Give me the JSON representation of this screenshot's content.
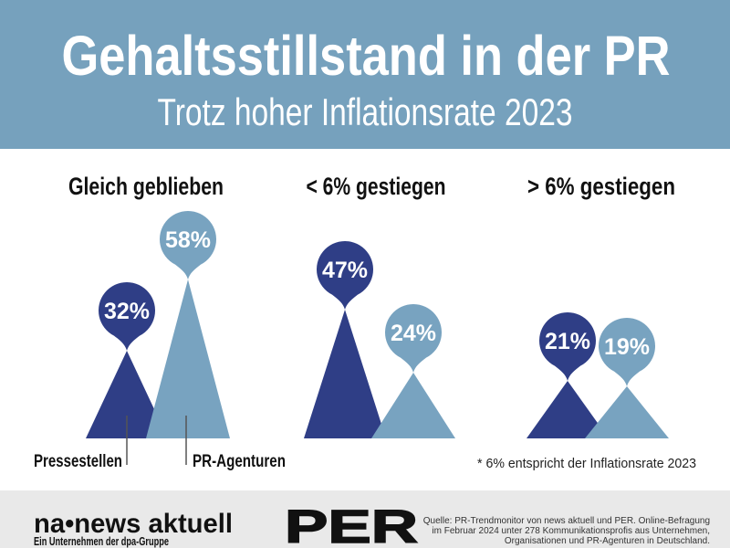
{
  "header": {
    "title": "Gehaltsstillstand in der PR",
    "subtitle": "Trotz hoher Inflationsrate 2023"
  },
  "chart_data": {
    "type": "bar",
    "variant": "pictorial-mountains-with-balloon-labels",
    "categories": [
      "Gleich geblieben",
      "< 6% gestiegen",
      "> 6% gestiegen"
    ],
    "series": [
      {
        "name": "Pressestellen",
        "color": "#2F3E86",
        "values": [
          32,
          47,
          21
        ]
      },
      {
        "name": "PR-Agenturen",
        "color": "#78A3C0",
        "values": [
          58,
          24,
          19
        ]
      }
    ],
    "unit": "%",
    "ylim": [
      0,
      60
    ],
    "legend_position": "bottom-left",
    "grid": false,
    "note": "* 6% entspricht der Inflationsrate 2023"
  },
  "footer": {
    "logo_main": "na•news aktuell",
    "logo_sub": "Ein Unternehmen der dpa-Gruppe",
    "partner_logo": "PER",
    "source_lines": [
      "Quelle: PR-Trendmonitor von news aktuell und PER. Online-Befragung",
      "im Februar 2024 unter 278 Kommunikationsprofis aus Unternehmen,",
      "Organisationen und PR-Agenturen in Deutschland."
    ]
  },
  "colors": {
    "header_bg": "#76A1BD",
    "main_bg": "#FFFFFF",
    "footer_bg": "#E9E9E9",
    "dark_blue": "#2F3E86",
    "light_blue": "#78A3C0",
    "title_text": "#FFFFFF",
    "body_text": "#111111",
    "note_text": "#222222",
    "source_text": "#333333",
    "legend_line": "#555555"
  }
}
